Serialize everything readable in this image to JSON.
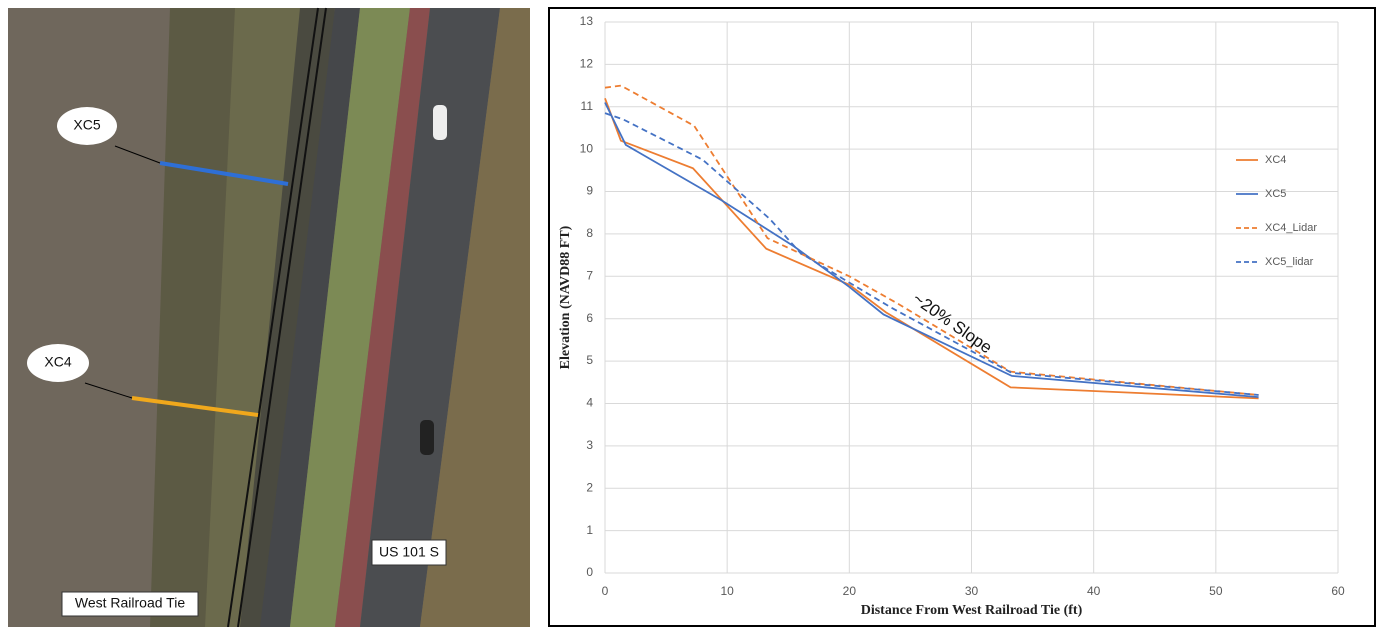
{
  "image": {
    "labels": [
      "XC5",
      "XC4",
      "US 101 S",
      "West Railroad Tie"
    ]
  },
  "chart_data": {
    "type": "line",
    "x_label": "Distance From West Railroad Tie (ft)",
    "y_label": "Elevation (NAVD88 FT)",
    "annotation": "~20% Slope",
    "xlim": [
      0,
      60
    ],
    "xticks": [
      0,
      10,
      20,
      30,
      40,
      50,
      60
    ],
    "ylim": [
      0,
      13
    ],
    "yticks": [
      0,
      1,
      2,
      3,
      4,
      5,
      6,
      7,
      8,
      9,
      10,
      11,
      12,
      13
    ],
    "grid": true,
    "legend": "right",
    "series": [
      {
        "name": "XC4",
        "color": "#ed7d31",
        "dashed": false,
        "x": [
          0,
          1.3,
          7.2,
          13.2,
          20,
          23,
          33.2,
          53.5
        ],
        "values": [
          11.2,
          10.2,
          9.55,
          7.65,
          6.8,
          6.15,
          4.38,
          4.12
        ]
      },
      {
        "name": "XC5",
        "color": "#4472c4",
        "dashed": false,
        "x": [
          0,
          1.7,
          9.5,
          15.5,
          20,
          22.8,
          33.3,
          53.5
        ],
        "values": [
          11.1,
          10.1,
          8.8,
          7.7,
          6.75,
          6.1,
          4.65,
          4.15
        ]
      },
      {
        "name": "XC4_Lidar",
        "color": "#ed7d31",
        "dashed": true,
        "x": [
          0,
          1.3,
          7.3,
          13.3,
          20,
          24,
          33.2,
          53.5
        ],
        "values": [
          11.45,
          11.5,
          10.55,
          7.9,
          7.0,
          6.35,
          4.75,
          4.2
        ]
      },
      {
        "name": "XC5_lidar",
        "color": "#4472c4",
        "dashed": true,
        "x": [
          0,
          1.5,
          8,
          13.5,
          16,
          20,
          23.5,
          33.3,
          53.5
        ],
        "values": [
          10.85,
          10.7,
          9.75,
          8.35,
          7.55,
          6.85,
          6.25,
          4.72,
          4.2
        ]
      }
    ]
  }
}
